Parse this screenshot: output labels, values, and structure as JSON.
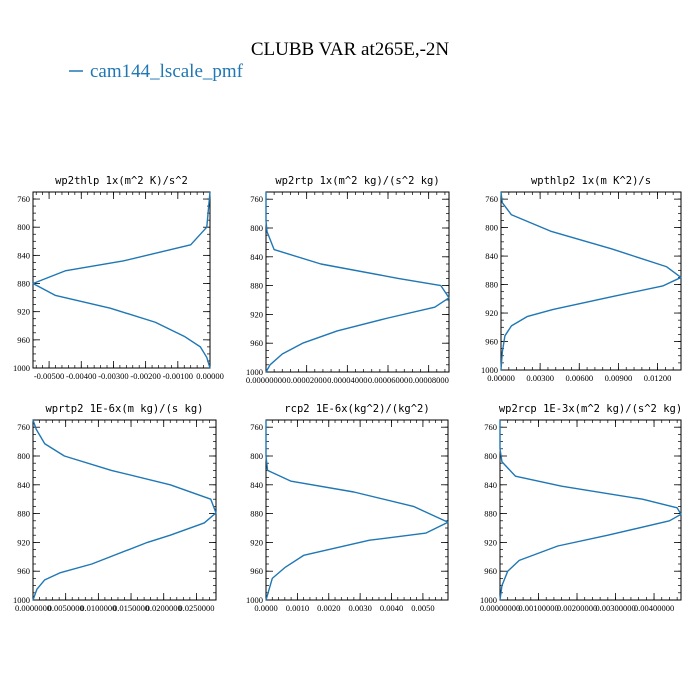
{
  "figure": {
    "title": "CLUBB VAR at265E,-2N",
    "legend_label": "cam144_lscale_pmf",
    "line_color": "#1f77b4"
  },
  "chart_data": [
    {
      "type": "line",
      "title": "wp2thlp  1x(m^2 K)/s^2",
      "xlim": [
        -0.0055,
        0.0
      ],
      "ylim": [
        1000,
        750
      ],
      "y_ticks": [
        760,
        800,
        840,
        880,
        920,
        960,
        1000
      ],
      "x_ticks": [
        -0.005,
        -0.004,
        -0.003,
        -0.002,
        -0.001,
        0.0
      ],
      "x_tick_labels": [
        "-0.00500",
        "-0.00400",
        "-0.00300",
        "-0.00200",
        "-0.00100",
        "0.00000"
      ],
      "series": [
        {
          "x": [
            0.0,
            -0.0001,
            -0.0006,
            -0.0027,
            -0.0045,
            -0.0055,
            -0.0048,
            -0.0031,
            -0.0017,
            -0.0008,
            -0.0003,
            -0.0001,
            0.0
          ],
          "y": [
            750,
            800,
            825,
            848,
            862,
            880,
            897,
            915,
            935,
            955,
            970,
            985,
            1000
          ]
        }
      ]
    },
    {
      "type": "line",
      "title": "wp2rtp  1x(m^2 kg)/(s^2 kg)",
      "xlim": [
        0.0,
        9e-05
      ],
      "ylim": [
        1000,
        750
      ],
      "y_ticks": [
        760,
        800,
        840,
        880,
        920,
        960,
        1000
      ],
      "x_ticks": [
        0.0,
        2e-05,
        4e-05,
        6e-05,
        8e-05
      ],
      "x_tick_labels": [
        "0.00000000",
        "0.00002000",
        "0.00004000",
        "0.00006000",
        "0.00008000"
      ],
      "series": [
        {
          "x": [
            0.0,
            0.0,
            5e-07,
            4e-06,
            2.7e-05,
            6.5e-05,
            8.6e-05,
            9e-05,
            8.3e-05,
            6e-05,
            3.5e-05,
            1.8e-05,
            8e-06,
            2e-06,
            0.0
          ],
          "y": [
            750,
            790,
            805,
            830,
            850,
            870,
            880,
            897,
            910,
            925,
            943,
            960,
            975,
            990,
            1000
          ]
        }
      ]
    },
    {
      "type": "line",
      "title": "wpthlp2  1x(m K^2)/s",
      "xlim": [
        0.0,
        0.0138
      ],
      "ylim": [
        1000,
        750
      ],
      "y_ticks": [
        760,
        800,
        840,
        880,
        920,
        960,
        1000
      ],
      "x_ticks": [
        0.0,
        0.003,
        0.006,
        0.009,
        0.012
      ],
      "x_tick_labels": [
        "0.00000",
        "0.00300",
        "0.00600",
        "0.00900",
        "0.01200"
      ],
      "series": [
        {
          "x": [
            0.0,
            0.0001,
            0.0008,
            0.0038,
            0.0085,
            0.0127,
            0.0138,
            0.0124,
            0.0085,
            0.004,
            0.002,
            0.0008,
            0.0003,
            0.0001,
            0.0
          ],
          "y": [
            750,
            765,
            782,
            805,
            830,
            855,
            870,
            882,
            897,
            915,
            925,
            938,
            952,
            975,
            1000
          ]
        }
      ]
    },
    {
      "type": "line",
      "title": "wprtp2  1E-6x(m kg)/(s kg)",
      "xlim": [
        0.0,
        0.028
      ],
      "ylim": [
        1000,
        750
      ],
      "y_ticks": [
        760,
        800,
        840,
        880,
        920,
        960,
        1000
      ],
      "x_ticks": [
        0.0,
        0.005,
        0.01,
        0.015,
        0.02,
        0.025
      ],
      "x_tick_labels": [
        "0.0000000",
        "0.0050000",
        "0.0100000",
        "0.0150000",
        "0.0200000",
        "0.0250000"
      ],
      "series": [
        {
          "x": [
            0.0,
            0.0005,
            0.0018,
            0.0048,
            0.012,
            0.021,
            0.0272,
            0.028,
            0.0262,
            0.021,
            0.0175,
            0.009,
            0.0042,
            0.0018,
            0.0006,
            0.0
          ],
          "y": [
            750,
            763,
            783,
            800,
            820,
            840,
            860,
            879,
            893,
            910,
            920,
            950,
            962,
            972,
            985,
            1000
          ]
        }
      ]
    },
    {
      "type": "line",
      "title": "rcp2  1E-6x(kg^2)/(kg^2)",
      "xlim": [
        0.0,
        0.0058
      ],
      "ylim": [
        1000,
        750
      ],
      "y_ticks": [
        760,
        800,
        840,
        880,
        920,
        960,
        1000
      ],
      "x_ticks": [
        0.0,
        0.001,
        0.002,
        0.003,
        0.004,
        0.005
      ],
      "x_tick_labels": [
        "0.0000",
        "0.0010",
        "0.0020",
        "0.0030",
        "0.0040",
        "0.0050"
      ],
      "series": [
        {
          "x": [
            0.0,
            0.0,
            5e-05,
            0.0008,
            0.0028,
            0.0047,
            0.0058,
            0.0051,
            0.0033,
            0.0012,
            0.0006,
            0.0002,
            0.0
          ],
          "y": [
            750,
            800,
            820,
            835,
            850,
            870,
            892,
            907,
            917,
            938,
            955,
            970,
            1000
          ]
        }
      ]
    },
    {
      "type": "line",
      "title": "wp2rcp  1E-3x(m^2 kg)/(s^2 kg)",
      "xlim": [
        0.0,
        0.0047
      ],
      "ylim": [
        1000,
        750
      ],
      "y_ticks": [
        760,
        800,
        840,
        880,
        920,
        960,
        1000
      ],
      "x_ticks": [
        0.0,
        0.001,
        0.002,
        0.003,
        0.004
      ],
      "x_tick_labels": [
        "0.00000000",
        "0.00100000",
        "0.00200000",
        "0.00300000",
        "0.00400000"
      ],
      "series": [
        {
          "x": [
            0.0,
            0.0,
            5e-05,
            0.0004,
            0.0016,
            0.0037,
            0.0046,
            0.0047,
            0.0044,
            0.0028,
            0.0015,
            0.0005,
            0.0002,
            5e-05,
            0.0
          ],
          "y": [
            750,
            790,
            808,
            828,
            842,
            860,
            872,
            881,
            890,
            910,
            925,
            945,
            960,
            980,
            1000
          ]
        }
      ]
    }
  ]
}
